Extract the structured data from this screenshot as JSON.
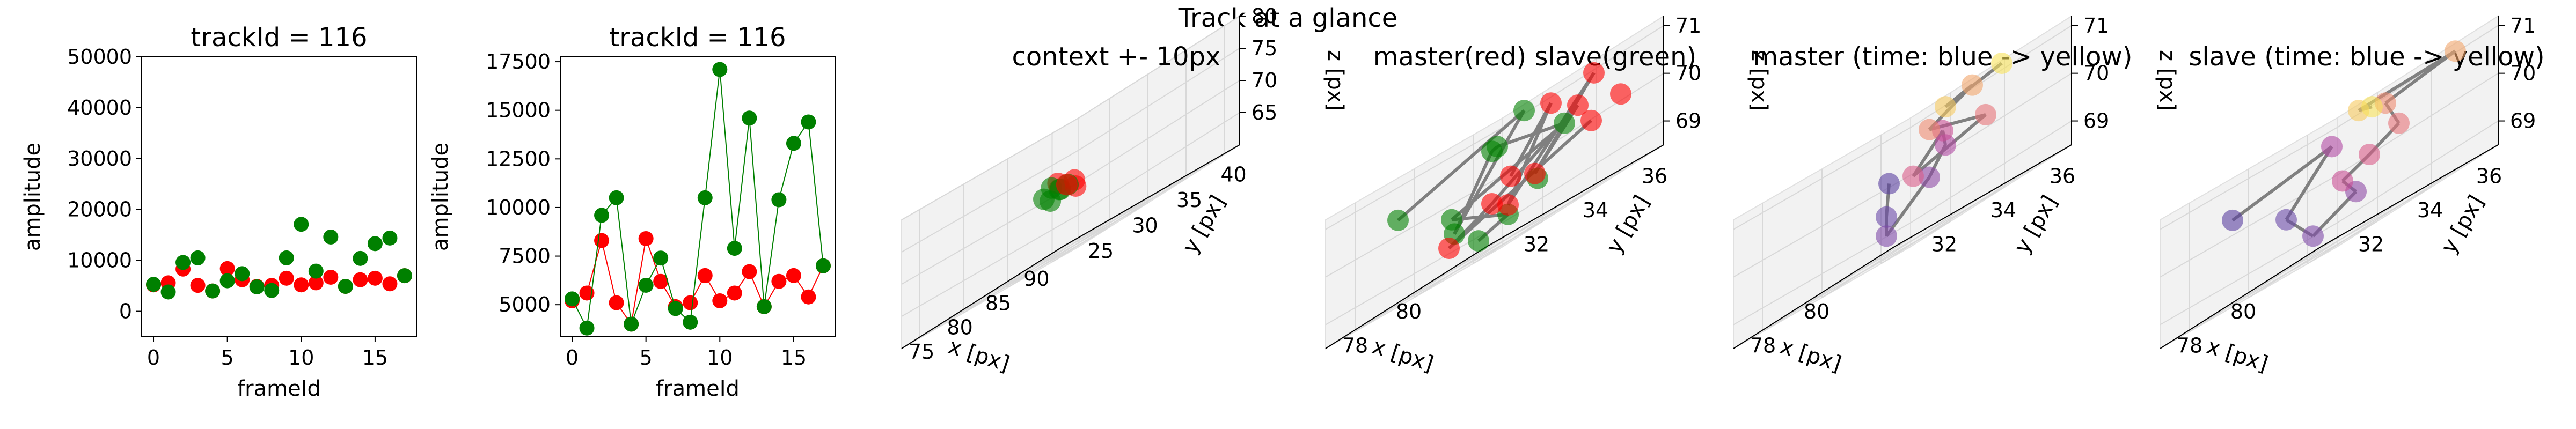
{
  "figure": {
    "suptitle": "Track at a glance"
  },
  "charts": [
    {
      "type": "line",
      "title": "trackId = 116",
      "xlabel": "frameId",
      "ylabel": "amplitude",
      "xlim": [
        -0.8,
        17.8
      ],
      "ylim": [
        -5000,
        50000
      ],
      "xticks": [
        0,
        5,
        10,
        15
      ],
      "yticks": [
        0,
        10000,
        20000,
        30000,
        40000,
        50000
      ],
      "connect": false,
      "series": [
        {
          "color": "#ff0000",
          "x": [
            0,
            1,
            2,
            3,
            4,
            5,
            6,
            7,
            8,
            9,
            10,
            11,
            12,
            13,
            14,
            15,
            16,
            17
          ],
          "y": [
            5200,
            5600,
            8300,
            5100,
            4000,
            8400,
            6200,
            4900,
            5100,
            6500,
            5200,
            5600,
            6700,
            4900,
            6200,
            6500,
            5400,
            7000
          ]
        },
        {
          "color": "#008000",
          "x": [
            0,
            1,
            2,
            3,
            4,
            5,
            6,
            7,
            8,
            9,
            10,
            11,
            12,
            13,
            14,
            15,
            16,
            17
          ],
          "y": [
            5300,
            3800,
            9600,
            10500,
            4000,
            6000,
            7400,
            4800,
            4100,
            10500,
            17100,
            7900,
            14600,
            4900,
            10400,
            13300,
            14400,
            7000
          ]
        }
      ]
    },
    {
      "type": "line",
      "title": "trackId = 116",
      "xlabel": "frameId",
      "ylabel": "amplitude",
      "xlim": [
        -0.8,
        17.8
      ],
      "ylim": [
        3350,
        17750
      ],
      "xticks": [
        0,
        5,
        10,
        15
      ],
      "yticks": [
        5000,
        7500,
        10000,
        12500,
        15000,
        17500
      ],
      "connect": true,
      "series": [
        {
          "color": "#ff0000",
          "x": [
            0,
            1,
            2,
            3,
            4,
            5,
            6,
            7,
            8,
            9,
            10,
            11,
            12,
            13,
            14,
            15,
            16,
            17
          ],
          "y": [
            5200,
            5600,
            8300,
            5100,
            4000,
            8400,
            6200,
            4900,
            5100,
            6500,
            5200,
            5600,
            6700,
            4900,
            6200,
            6500,
            5400,
            7000
          ]
        },
        {
          "color": "#008000",
          "x": [
            0,
            1,
            2,
            3,
            4,
            5,
            6,
            7,
            8,
            9,
            10,
            11,
            12,
            13,
            14,
            15,
            16,
            17
          ],
          "y": [
            5300,
            3800,
            9600,
            10500,
            4000,
            6000,
            7400,
            4800,
            4100,
            10500,
            17100,
            7900,
            14600,
            4900,
            10400,
            13300,
            14400,
            7000
          ]
        }
      ]
    },
    {
      "type": "scatter3d",
      "title": "context +- 10px",
      "xlabel": "x [px]",
      "ylabel": "y [px]",
      "zlabel": "z [px]",
      "xlim": [
        71,
        92
      ],
      "ylim": [
        23,
        43
      ],
      "zlim": [
        60,
        80
      ],
      "xticks": [
        75,
        80,
        85,
        90
      ],
      "yticks": [
        25,
        30,
        35,
        40
      ],
      "zticks": [
        65,
        70,
        75,
        80
      ],
      "points": [
        {
          "x": 80,
          "y": 33,
          "z": 70,
          "c": "#008000"
        },
        {
          "x": 81,
          "y": 32,
          "z": 71,
          "c": "#ff0000"
        },
        {
          "x": 79,
          "y": 34,
          "z": 70,
          "c": "#008000"
        },
        {
          "x": 81,
          "y": 34,
          "z": 69,
          "c": "#ff0000"
        },
        {
          "x": 80,
          "y": 32,
          "z": 69,
          "c": "#008000"
        },
        {
          "x": 82,
          "y": 33,
          "z": 70,
          "c": "#ff0000"
        },
        {
          "x": 79,
          "y": 33,
          "z": 71,
          "c": "#008000"
        },
        {
          "x": 80,
          "y": 34,
          "z": 70,
          "c": "#008000"
        },
        {
          "x": 81,
          "y": 33,
          "z": 70,
          "c": "#ff0000"
        },
        {
          "x": 78,
          "y": 33,
          "z": 70,
          "c": "#008000"
        }
      ]
    },
    {
      "type": "scatter3d",
      "title": "master(red) slave(green)",
      "xlabel": "x [px]",
      "ylabel": "y [px]",
      "zlabel": "z [px]",
      "xlim": [
        76.5,
        82.5
      ],
      "ylim": [
        31,
        37
      ],
      "zlim": [
        68.5,
        71.2
      ],
      "xticks": [
        78,
        80
      ],
      "yticks": [
        32,
        34,
        36
      ],
      "zticks": [
        69,
        70,
        71
      ],
      "points": [
        {
          "x": 77,
          "y": 33,
          "z": 70.3,
          "c": "#008000"
        },
        {
          "x": 78,
          "y": 34,
          "z": 69.3,
          "c": "#008000"
        },
        {
          "x": 78.5,
          "y": 35,
          "z": 70.6,
          "c": "#008000"
        },
        {
          "x": 79,
          "y": 33,
          "z": 69.6,
          "c": "#008000"
        },
        {
          "x": 79.5,
          "y": 35,
          "z": 71,
          "c": "#008000"
        },
        {
          "x": 80,
          "y": 34,
          "z": 69,
          "c": "#008000"
        },
        {
          "x": 80,
          "y": 35,
          "z": 69.4,
          "c": "#008000"
        },
        {
          "x": 80.5,
          "y": 33,
          "z": 70.5,
          "c": "#008000"
        },
        {
          "x": 81,
          "y": 35,
          "z": 70.2,
          "c": "#008000"
        },
        {
          "x": 80,
          "y": 33,
          "z": 68.8,
          "c": "#008000"
        },
        {
          "x": 79,
          "y": 35,
          "z": 69.8,
          "c": "#ff0000"
        },
        {
          "x": 80,
          "y": 34,
          "z": 69.2,
          "c": "#ff0000"
        },
        {
          "x": 80.5,
          "y": 35,
          "z": 70.8,
          "c": "#ff0000"
        },
        {
          "x": 81,
          "y": 34,
          "z": 69.5,
          "c": "#ff0000"
        },
        {
          "x": 81,
          "y": 36,
          "z": 70.9,
          "c": "#ff0000"
        },
        {
          "x": 80.5,
          "y": 33,
          "z": 69.4,
          "c": "#ff0000"
        },
        {
          "x": 81.5,
          "y": 35,
          "z": 70.4,
          "c": "#ff0000"
        },
        {
          "x": 82,
          "y": 35,
          "z": 69.9,
          "c": "#ff0000"
        },
        {
          "x": 80,
          "y": 32,
          "z": 69,
          "c": "#ff0000"
        },
        {
          "x": 82,
          "y": 36,
          "z": 70.1,
          "c": "#ff0000"
        }
      ],
      "lines": [
        [
          0,
          4
        ],
        [
          4,
          1
        ],
        [
          1,
          7
        ],
        [
          7,
          2
        ],
        [
          2,
          8
        ],
        [
          8,
          3
        ],
        [
          3,
          5
        ],
        [
          5,
          9
        ],
        [
          10,
          12
        ],
        [
          12,
          11
        ],
        [
          11,
          14
        ],
        [
          14,
          13
        ],
        [
          13,
          16
        ],
        [
          16,
          15
        ],
        [
          15,
          18
        ],
        [
          18,
          17
        ]
      ]
    },
    {
      "type": "scatter3d",
      "title": "master (time: blue -> yellow)",
      "xlabel": "x [px]",
      "ylabel": "y [px]",
      "zlabel": "z [px]",
      "xlim": [
        76.5,
        82.5
      ],
      "ylim": [
        31,
        37
      ],
      "zlim": [
        68.5,
        71.2
      ],
      "xticks": [
        78,
        80
      ],
      "yticks": [
        32,
        34,
        36
      ],
      "zticks": [
        69,
        70,
        71
      ],
      "points": [
        {
          "x": 79,
          "y": 34,
          "z": 70,
          "c": "#5a3fa0"
        },
        {
          "x": 80,
          "y": 33,
          "z": 69.3,
          "c": "#6a49a8"
        },
        {
          "x": 80,
          "y": 33,
          "z": 68.9,
          "c": "#7e4aa8"
        },
        {
          "x": 80.5,
          "y": 34,
          "z": 69.6,
          "c": "#8e4aa5"
        },
        {
          "x": 80,
          "y": 35,
          "z": 70.1,
          "c": "#b04aa4"
        },
        {
          "x": 81,
          "y": 34,
          "z": 70.4,
          "c": "#c94f95"
        },
        {
          "x": 81,
          "y": 33,
          "z": 69.8,
          "c": "#d95c88"
        },
        {
          "x": 81.5,
          "y": 35,
          "z": 70.2,
          "c": "#e67378"
        },
        {
          "x": 80.5,
          "y": 34,
          "z": 70.6,
          "c": "#ee8a70"
        },
        {
          "x": 81,
          "y": 35,
          "z": 71,
          "c": "#f2a56a"
        },
        {
          "x": 80,
          "y": 35,
          "z": 70.9,
          "c": "#f7c95f"
        },
        {
          "x": 81,
          "y": 36,
          "z": 71.1,
          "c": "#f9e25a"
        }
      ],
      "lines": [
        [
          0,
          1
        ],
        [
          1,
          2
        ],
        [
          2,
          3
        ],
        [
          3,
          4
        ],
        [
          4,
          5
        ],
        [
          5,
          6
        ],
        [
          6,
          7
        ],
        [
          7,
          8
        ],
        [
          8,
          9
        ],
        [
          9,
          10
        ],
        [
          10,
          11
        ]
      ]
    },
    {
      "type": "scatter3d",
      "title": "slave (time: blue -> yellow)",
      "xlabel": "x [px]",
      "ylabel": "y [px]",
      "zlabel": "z [px]",
      "xlim": [
        76.5,
        82.5
      ],
      "ylim": [
        31,
        37
      ],
      "zlim": [
        68.5,
        71.2
      ],
      "xticks": [
        78,
        80
      ],
      "yticks": [
        32,
        34,
        36
      ],
      "zticks": [
        69,
        70,
        71
      ],
      "points": [
        {
          "x": 77,
          "y": 33,
          "z": 70.3,
          "c": "#5a3fa0"
        },
        {
          "x": 79,
          "y": 33,
          "z": 69.6,
          "c": "#6a49a8"
        },
        {
          "x": 80,
          "y": 33,
          "z": 68.9,
          "c": "#7e4aa8"
        },
        {
          "x": 80.5,
          "y": 34,
          "z": 69.3,
          "c": "#8e4aa5"
        },
        {
          "x": 78.5,
          "y": 35,
          "z": 70.6,
          "c": "#b04aa4"
        },
        {
          "x": 80,
          "y": 34,
          "z": 69.7,
          "c": "#c94f95"
        },
        {
          "x": 81,
          "y": 34,
          "z": 69.9,
          "c": "#d95c88"
        },
        {
          "x": 81,
          "y": 35,
          "z": 70.2,
          "c": "#e67378"
        },
        {
          "x": 80.5,
          "y": 35,
          "z": 70.8,
          "c": "#ee8a70"
        },
        {
          "x": 82,
          "y": 36,
          "z": 71,
          "c": "#f2a56a"
        },
        {
          "x": 79.5,
          "y": 35,
          "z": 71,
          "c": "#f7c95f"
        },
        {
          "x": 80,
          "y": 35,
          "z": 70.9,
          "c": "#f9e25a"
        }
      ],
      "lines": [
        [
          0,
          4
        ],
        [
          4,
          1
        ],
        [
          1,
          2
        ],
        [
          2,
          3
        ],
        [
          3,
          5
        ],
        [
          5,
          6
        ],
        [
          6,
          7
        ],
        [
          7,
          8
        ],
        [
          8,
          9
        ],
        [
          9,
          10
        ],
        [
          10,
          11
        ]
      ]
    }
  ]
}
